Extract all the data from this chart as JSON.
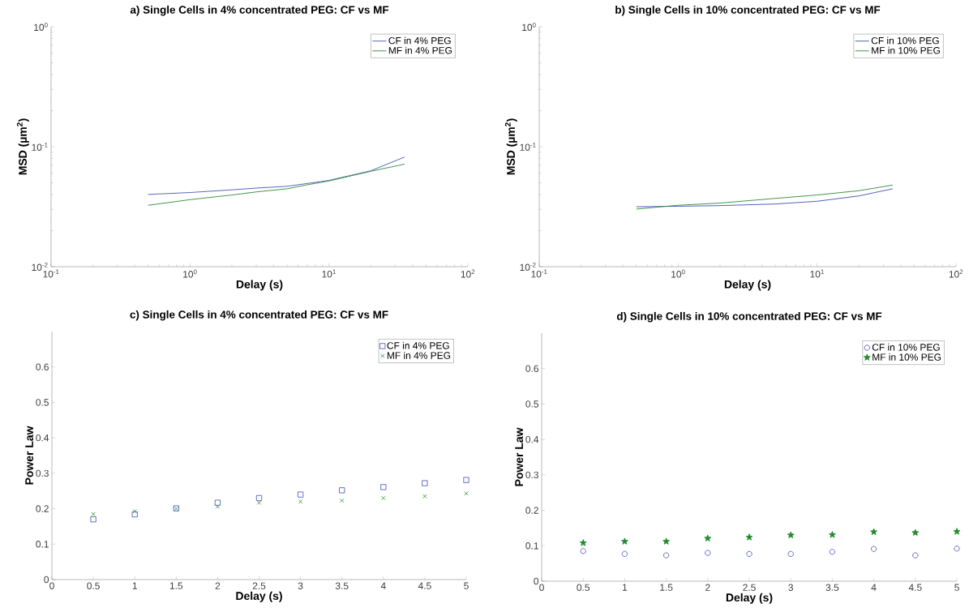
{
  "chart_data": [
    {
      "type": "line",
      "title": "a)   Single Cells in 4% concentrated PEG: CF vs MF",
      "xlabel": "Delay (s)",
      "ylabel": "MSD (µm$^{2}$)",
      "log": "xy",
      "legend": "top right",
      "x": [
        0.5,
        1,
        2,
        3,
        5,
        7,
        10,
        20,
        35
      ],
      "series": [
        {
          "name": "CF in 4% PEG",
          "color": "#4a56b8",
          "values": [
            0.04,
            0.0415,
            0.0437,
            0.0452,
            0.0468,
            0.0494,
            0.0524,
            0.063,
            0.082
          ]
        },
        {
          "name": "MF in 4% PEG",
          "color": "#2e8b3a",
          "values": [
            0.0325,
            0.0362,
            0.0396,
            0.042,
            0.0446,
            0.0482,
            0.0518,
            0.0624,
            0.0716
          ]
        }
      ],
      "xlim": [
        0.1,
        100
      ],
      "ylim": [
        0.01,
        1
      ],
      "xticks": [
        {
          "value": 0.1,
          "label": "10$^{-1}$"
        },
        {
          "value": 1,
          "label": "10$^{0}$"
        },
        {
          "value": 10,
          "label": "10$^{1}$"
        },
        {
          "value": 100,
          "label": "10$^{2}$"
        }
      ],
      "yticks": [
        {
          "value": 0.01,
          "label": "10$^{-2}$"
        },
        {
          "value": 0.1,
          "label": "10$^{-1}$"
        },
        {
          "value": 1,
          "label": "10$^{0}$"
        }
      ]
    },
    {
      "type": "line",
      "title": "b)   Single Cells in 10% concentrated PEG: CF vs MF",
      "xlabel": "Delay (s)",
      "ylabel": "MSD (µm$^{2}$)",
      "log": "xy",
      "legend": "top right",
      "x": [
        0.5,
        0.8,
        1,
        2,
        5,
        10,
        20,
        35
      ],
      "series": [
        {
          "name": "CF in 10% PEG",
          "color": "#3f4fb8",
          "values": [
            0.0316,
            0.0318,
            0.0319,
            0.0323,
            0.0333,
            0.0351,
            0.0389,
            0.0446
          ]
        },
        {
          "name": "MF in 10% PEG",
          "color": "#2e8b3a",
          "values": [
            0.0302,
            0.0318,
            0.0325,
            0.0339,
            0.0371,
            0.0396,
            0.043,
            0.0479
          ]
        }
      ],
      "xlim": [
        0.1,
        100
      ],
      "ylim": [
        0.01,
        1
      ],
      "xticks": [
        {
          "value": 0.1,
          "label": "10$^{-1}$"
        },
        {
          "value": 1,
          "label": "10$^{0}$"
        },
        {
          "value": 10,
          "label": "10$^{1}$"
        },
        {
          "value": 100,
          "label": "10$^{2}$"
        }
      ],
      "yticks": [
        {
          "value": 0.01,
          "label": "10$^{-2}$"
        },
        {
          "value": 0.1,
          "label": "10$^{-1}$"
        },
        {
          "value": 1,
          "label": "10$^{0}$"
        }
      ]
    },
    {
      "type": "scatter",
      "title": "c)   Single Cells in 4% concentrated PEG: CF vs MF",
      "xlabel": "Delay (s)",
      "ylabel": "Power Law",
      "legend": "top right",
      "x": [
        0.5,
        1,
        1.5,
        2,
        2.5,
        3,
        3.5,
        4,
        4.5,
        5
      ],
      "series": [
        {
          "name": "CF in 4% PEG",
          "color": "#3f4fb8",
          "marker": "square",
          "values": [
            0.17,
            0.184,
            0.201,
            0.217,
            0.23,
            0.24,
            0.252,
            0.261,
            0.272,
            0.281
          ]
        },
        {
          "name": "MF in 4% PEG",
          "color": "#1e8c2a",
          "marker": "cross",
          "values": [
            0.185,
            0.193,
            0.2,
            0.206,
            0.217,
            0.22,
            0.223,
            0.23,
            0.235,
            0.243
          ]
        }
      ],
      "xlim": [
        0,
        5
      ],
      "ylim": [
        0,
        0.7
      ],
      "xticks": [
        0,
        0.5,
        1,
        1.5,
        2,
        2.5,
        3,
        3.5,
        4,
        4.5,
        5
      ],
      "yticks": [
        0,
        0.1,
        0.2,
        0.3,
        0.4,
        0.5,
        0.6
      ]
    },
    {
      "type": "scatter",
      "title": "d)   Single Cells in 10% concentrated PEG: CF vs MF",
      "xlabel": "Delay (s)",
      "ylabel": "Power Law",
      "legend": "top right",
      "x": [
        0.5,
        1,
        1.5,
        2,
        2.5,
        3,
        3.5,
        4,
        4.5,
        5
      ],
      "series": [
        {
          "name": "CF in 10% PEG",
          "color": "#3f4fb8",
          "marker": "circle",
          "values": [
            0.085,
            0.077,
            0.073,
            0.08,
            0.077,
            0.077,
            0.083,
            0.091,
            0.073,
            0.092
          ]
        },
        {
          "name": "MF in 10% PEG",
          "color": "#1e8c2a",
          "marker": "star",
          "values": [
            0.108,
            0.112,
            0.112,
            0.121,
            0.124,
            0.13,
            0.131,
            0.139,
            0.137,
            0.14
          ]
        }
      ],
      "xlim": [
        0,
        5
      ],
      "ylim": [
        0,
        0.7
      ],
      "xticks": [
        0,
        0.5,
        1,
        1.5,
        2,
        2.5,
        3,
        3.5,
        4,
        4.5,
        5
      ],
      "yticks": [
        0,
        0.1,
        0.2,
        0.3,
        0.4,
        0.5,
        0.6
      ]
    }
  ]
}
